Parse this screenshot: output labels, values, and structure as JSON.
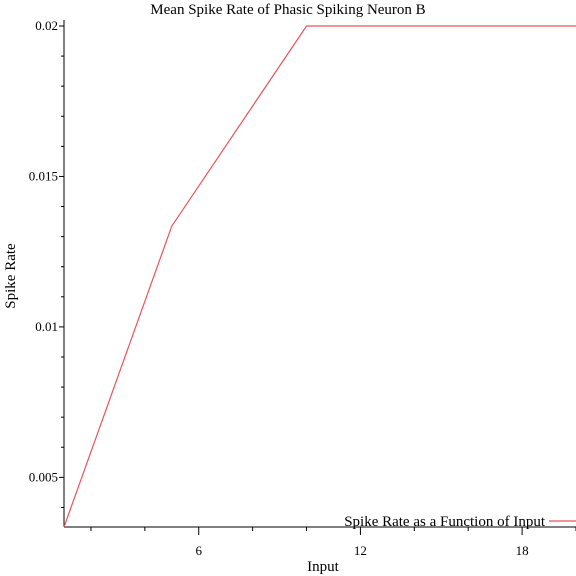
{
  "chart_data": {
    "type": "line",
    "title": "Mean Spike Rate of Phasic Spiking Neuron B",
    "xlabel": "Input",
    "ylabel": "Spike Rate",
    "xlim": [
      1,
      20
    ],
    "ylim": [
      0.00335,
      0.02
    ],
    "x_ticks": [
      6,
      12,
      18
    ],
    "x_tick_labels": [
      "6",
      "12",
      "18"
    ],
    "y_ticks": [
      0.005,
      0.01,
      0.015,
      0.02
    ],
    "y_tick_labels": [
      "0.005",
      "0.01",
      "0.015",
      "0.02"
    ],
    "grid": false,
    "legend_position": "bottom-right",
    "series": [
      {
        "name": "Spike Rate as a Function of Input",
        "color": "#e8545a",
        "x": [
          1,
          5,
          10,
          20
        ],
        "y": [
          0.00335,
          0.01335,
          0.02,
          0.02
        ]
      }
    ]
  }
}
